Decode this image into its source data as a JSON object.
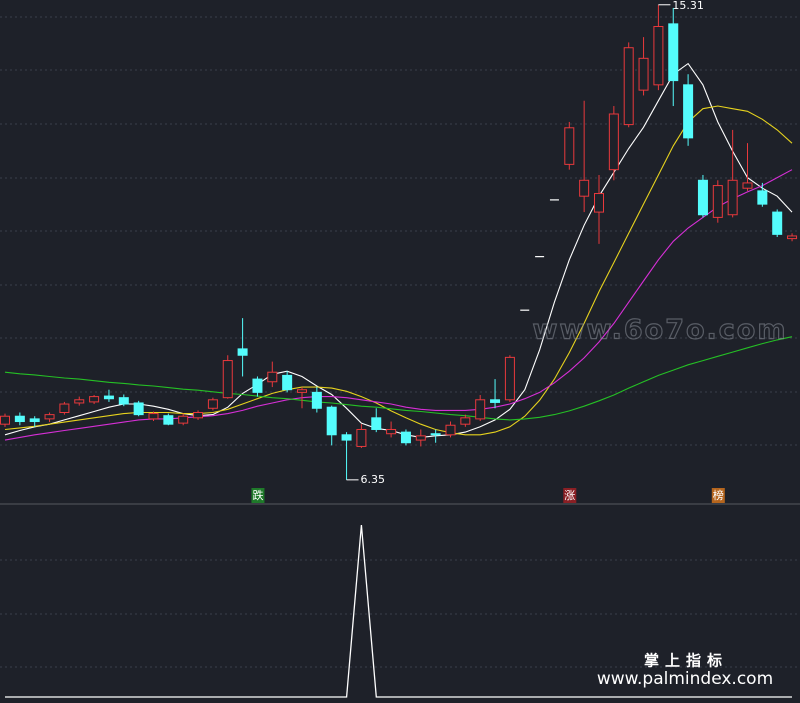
{
  "chart_data": [
    {
      "type": "candlestick",
      "ylim": [
        5.97,
        15.4
      ],
      "up_color": "#e8393c",
      "down_color": "#54fcfc",
      "flat_color": "#ffffff",
      "open": [
        7.4,
        7.55,
        7.5,
        7.5,
        7.62,
        7.8,
        7.82,
        7.93,
        7.9,
        7.8,
        7.5,
        7.56,
        7.42,
        7.52,
        7.7,
        7.9,
        8.82,
        8.25,
        8.2,
        8.32,
        8.0,
        8.0,
        7.72,
        7.2,
        6.98,
        7.52,
        7.22,
        7.25,
        7.1,
        7.22,
        7.2,
        7.4,
        7.5,
        7.86,
        7.86,
        9.55,
        10.56,
        11.63,
        12.3,
        11.7,
        11.4,
        12.2,
        13.05,
        13.7,
        13.8,
        14.95,
        13.8,
        12.0,
        11.3,
        11.35,
        11.85,
        11.8,
        11.4,
        10.9
      ],
      "high": [
        7.6,
        7.62,
        7.55,
        7.62,
        7.82,
        7.92,
        7.95,
        8.05,
        7.96,
        7.84,
        7.64,
        7.6,
        7.6,
        7.66,
        7.9,
        8.7,
        9.4,
        8.3,
        8.58,
        8.4,
        8.1,
        8.1,
        7.75,
        7.25,
        7.4,
        7.7,
        7.45,
        7.3,
        7.3,
        7.3,
        7.45,
        7.58,
        7.95,
        8.25,
        8.7,
        9.55,
        10.56,
        11.63,
        13.1,
        13.5,
        12.1,
        13.4,
        14.6,
        14.7,
        15.31,
        15.25,
        14.0,
        12.1,
        12.0,
        12.95,
        12.7,
        11.95,
        11.45,
        11.0
      ],
      "low": [
        7.35,
        7.38,
        7.35,
        7.44,
        7.58,
        7.75,
        7.78,
        7.82,
        7.74,
        7.55,
        7.46,
        7.38,
        7.38,
        7.48,
        7.66,
        7.88,
        8.3,
        7.92,
        8.1,
        8.0,
        7.7,
        7.62,
        7.0,
        6.35,
        6.95,
        7.25,
        7.15,
        7.0,
        6.98,
        7.05,
        7.15,
        7.35,
        7.46,
        7.7,
        7.82,
        9.55,
        10.56,
        11.63,
        12.2,
        11.4,
        10.8,
        12.0,
        13.0,
        13.6,
        13.7,
        13.4,
        12.65,
        11.3,
        11.2,
        11.3,
        11.8,
        11.5,
        10.93,
        10.85
      ],
      "close": [
        7.55,
        7.45,
        7.45,
        7.58,
        7.78,
        7.86,
        7.92,
        7.88,
        7.78,
        7.58,
        7.6,
        7.4,
        7.55,
        7.62,
        7.86,
        8.6,
        8.7,
        8.0,
        8.38,
        8.05,
        8.05,
        7.7,
        7.2,
        7.1,
        7.3,
        7.3,
        7.3,
        7.05,
        7.18,
        7.2,
        7.38,
        7.52,
        7.86,
        7.81,
        8.66,
        9.55,
        10.56,
        11.63,
        12.99,
        12.0,
        11.75,
        13.25,
        14.5,
        14.3,
        14.9,
        13.88,
        12.8,
        11.35,
        11.9,
        12.0,
        11.95,
        11.55,
        10.98,
        10.95
      ],
      "high_labels": [
        null,
        null,
        null,
        null,
        null,
        null,
        null,
        null,
        null,
        null,
        null,
        null,
        null,
        null,
        null,
        null,
        null,
        null,
        null,
        null,
        null,
        null,
        null,
        null,
        null,
        null,
        null,
        null,
        null,
        null,
        null,
        null,
        null,
        null,
        null,
        null,
        null,
        null,
        null,
        null,
        null,
        null,
        null,
        null,
        "15.31",
        null,
        null,
        null,
        null,
        null,
        null,
        null,
        null,
        null
      ],
      "low_labels": [
        null,
        null,
        null,
        null,
        null,
        null,
        null,
        null,
        null,
        null,
        null,
        null,
        null,
        null,
        null,
        null,
        null,
        null,
        null,
        null,
        null,
        null,
        null,
        "6.35",
        null,
        null,
        null,
        null,
        null,
        null,
        null,
        null,
        null,
        null,
        null,
        null,
        null,
        null,
        null,
        null,
        null,
        null,
        null,
        null,
        null,
        null,
        null,
        null,
        null,
        null,
        null,
        null,
        null,
        null
      ],
      "signals": [
        null,
        null,
        null,
        null,
        null,
        null,
        null,
        null,
        null,
        null,
        null,
        null,
        null,
        null,
        null,
        null,
        null,
        {
          "text": "跌",
          "color": "#1f7a2a"
        },
        null,
        null,
        null,
        null,
        null,
        null,
        null,
        null,
        null,
        null,
        null,
        null,
        null,
        null,
        null,
        null,
        null,
        null,
        null,
        null,
        {
          "text": "涨",
          "color": "#8a1f24"
        },
        null,
        null,
        null,
        null,
        null,
        null,
        null,
        null,
        null,
        {
          "text": "榜",
          "color": "#b5651d"
        },
        null,
        null,
        null,
        null,
        null,
        null
      ],
      "overlays": [
        {
          "color": "#ffffff",
          "values": [
            7.2,
            7.28,
            7.35,
            7.4,
            7.48,
            7.56,
            7.64,
            7.72,
            7.78,
            7.78,
            7.74,
            7.68,
            7.6,
            7.56,
            7.58,
            7.72,
            7.98,
            8.15,
            8.34,
            8.4,
            8.3,
            8.12,
            7.96,
            7.7,
            7.42,
            7.32,
            7.28,
            7.2,
            7.15,
            7.18,
            7.2,
            7.25,
            7.35,
            7.48,
            7.68,
            8.05,
            8.8,
            9.7,
            10.5,
            11.15,
            11.7,
            12.15,
            12.6,
            13.0,
            13.5,
            14.0,
            14.2,
            13.8,
            13.1,
            12.55,
            12.05,
            11.85,
            11.7,
            11.4
          ]
        },
        {
          "color": "#e6d21e",
          "values": [
            7.3,
            7.33,
            7.36,
            7.4,
            7.44,
            7.48,
            7.52,
            7.56,
            7.6,
            7.62,
            7.62,
            7.62,
            7.6,
            7.6,
            7.62,
            7.68,
            7.78,
            7.88,
            7.98,
            8.05,
            8.1,
            8.1,
            8.08,
            8.02,
            7.92,
            7.8,
            7.65,
            7.52,
            7.4,
            7.3,
            7.24,
            7.2,
            7.2,
            7.25,
            7.35,
            7.55,
            7.85,
            8.25,
            8.75,
            9.3,
            9.9,
            10.45,
            11.0,
            11.55,
            12.1,
            12.65,
            13.1,
            13.35,
            13.4,
            13.35,
            13.3,
            13.15,
            12.95,
            12.7
          ]
        },
        {
          "color": "#d62fd6",
          "values": [
            7.1,
            7.15,
            7.2,
            7.24,
            7.28,
            7.32,
            7.36,
            7.4,
            7.44,
            7.48,
            7.5,
            7.5,
            7.52,
            7.54,
            7.56,
            7.6,
            7.66,
            7.74,
            7.8,
            7.86,
            7.9,
            7.92,
            7.92,
            7.9,
            7.86,
            7.82,
            7.78,
            7.72,
            7.68,
            7.66,
            7.66,
            7.66,
            7.68,
            7.72,
            7.78,
            7.88,
            8.0,
            8.18,
            8.4,
            8.65,
            8.95,
            9.3,
            9.7,
            10.1,
            10.5,
            10.85,
            11.1,
            11.3,
            11.5,
            11.65,
            11.78,
            11.9,
            12.05,
            12.2
          ]
        },
        {
          "color": "#25c025",
          "values": [
            8.38,
            8.35,
            8.33,
            8.3,
            8.27,
            8.25,
            8.22,
            8.19,
            8.17,
            8.14,
            8.12,
            8.09,
            8.06,
            8.04,
            8.01,
            7.98,
            7.96,
            7.93,
            7.9,
            7.88,
            7.85,
            7.82,
            7.8,
            7.77,
            7.74,
            7.72,
            7.69,
            7.66,
            7.64,
            7.61,
            7.58,
            7.56,
            7.53,
            7.5,
            7.48,
            7.5,
            7.53,
            7.58,
            7.65,
            7.74,
            7.84,
            7.95,
            8.08,
            8.2,
            8.32,
            8.42,
            8.52,
            8.6,
            8.68,
            8.76,
            8.84,
            8.92,
            8.99,
            9.05
          ]
        }
      ]
    },
    {
      "type": "line",
      "ylim": [
        0,
        1
      ],
      "color": "#ffffff",
      "values": [
        0,
        0,
        0,
        0,
        0,
        0,
        0,
        0,
        0,
        0,
        0,
        0,
        0,
        0,
        0,
        0,
        0,
        0,
        0,
        0,
        0,
        0,
        0,
        0,
        1,
        0,
        0,
        0,
        0,
        0,
        0,
        0,
        0,
        0,
        0,
        0,
        0,
        0,
        0,
        0,
        0,
        0,
        0,
        0,
        0,
        0,
        0,
        0,
        0,
        0,
        0,
        0,
        0,
        0
      ]
    }
  ],
  "watermarks": {
    "site": "www.6o7o.com",
    "brand": "掌上指标",
    "url": "www.palmindex.com"
  }
}
